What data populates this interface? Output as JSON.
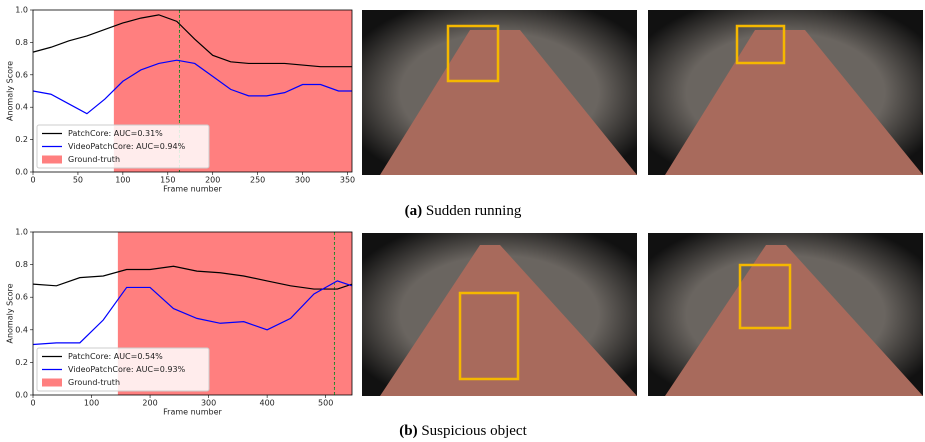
{
  "chart_data": [
    {
      "type": "line",
      "xlabel": "Frame number",
      "ylabel": "Anomaly Score",
      "x": [
        0,
        20,
        40,
        60,
        80,
        100,
        120,
        140,
        160,
        180,
        200,
        220,
        240,
        260,
        280,
        300,
        320,
        340,
        355
      ],
      "series": [
        {
          "name": "PatchCore: AUC=0.31%",
          "color": "#000000",
          "values": [
            0.74,
            0.77,
            0.81,
            0.84,
            0.88,
            0.92,
            0.95,
            0.97,
            0.93,
            0.82,
            0.72,
            0.68,
            0.67,
            0.67,
            0.67,
            0.66,
            0.65,
            0.65,
            0.65
          ]
        },
        {
          "name": "VideoPatchCore: AUC=0.94%",
          "color": "#0000ff",
          "values": [
            0.5,
            0.48,
            0.42,
            0.36,
            0.45,
            0.56,
            0.63,
            0.67,
            0.69,
            0.67,
            0.59,
            0.51,
            0.47,
            0.47,
            0.49,
            0.54,
            0.54,
            0.5,
            0.5
          ]
        }
      ],
      "ground_truth": {
        "name": "Ground-truth",
        "color": "#ff7f7f",
        "start": 90,
        "end": 355
      },
      "marker_x": 163,
      "marker_color": "#2ca02c",
      "xlim": [
        0,
        355
      ],
      "xticks": [
        0,
        50,
        100,
        150,
        200,
        250,
        300,
        350
      ],
      "ylim": [
        0,
        1
      ],
      "yticks": [
        {
          "value": 0,
          "label": "0.0"
        },
        0.2,
        0.4,
        0.6,
        0.8,
        {
          "value": 1,
          "label": "1.0"
        }
      ],
      "legend": "lower left"
    },
    {
      "type": "line",
      "xlabel": "Frame number",
      "ylabel": "Anomaly Score",
      "x": [
        0,
        40,
        80,
        120,
        160,
        200,
        240,
        280,
        320,
        360,
        400,
        440,
        480,
        520,
        545
      ],
      "series": [
        {
          "name": "PatchCore: AUC=0.54%",
          "color": "#000000",
          "values": [
            0.68,
            0.67,
            0.72,
            0.73,
            0.77,
            0.77,
            0.79,
            0.76,
            0.75,
            0.73,
            0.7,
            0.67,
            0.65,
            0.65,
            0.68
          ]
        },
        {
          "name": "VideoPatchCore: AUC=0.93%",
          "color": "#0000ff",
          "values": [
            0.31,
            0.32,
            0.32,
            0.46,
            0.66,
            0.66,
            0.53,
            0.47,
            0.44,
            0.45,
            0.4,
            0.47,
            0.62,
            0.7,
            0.67
          ]
        }
      ],
      "ground_truth": {
        "name": "Ground-truth",
        "color": "#ff7f7f",
        "start": 145,
        "end": 545
      },
      "marker_x": 515,
      "marker_color": "#2ca02c",
      "xlim": [
        0,
        545
      ],
      "xticks": [
        0,
        100,
        200,
        300,
        400,
        500
      ],
      "ylim": [
        0,
        1
      ],
      "yticks": [
        {
          "value": 0,
          "label": "0.0"
        },
        0.2,
        0.4,
        0.6,
        0.8,
        {
          "value": 1,
          "label": "1.0"
        }
      ],
      "legend": "lower left"
    }
  ],
  "captions": [
    {
      "label": "(a)",
      "text": "Sudden running"
    },
    {
      "label": "(b)",
      "text": "Suspicious object"
    }
  ]
}
